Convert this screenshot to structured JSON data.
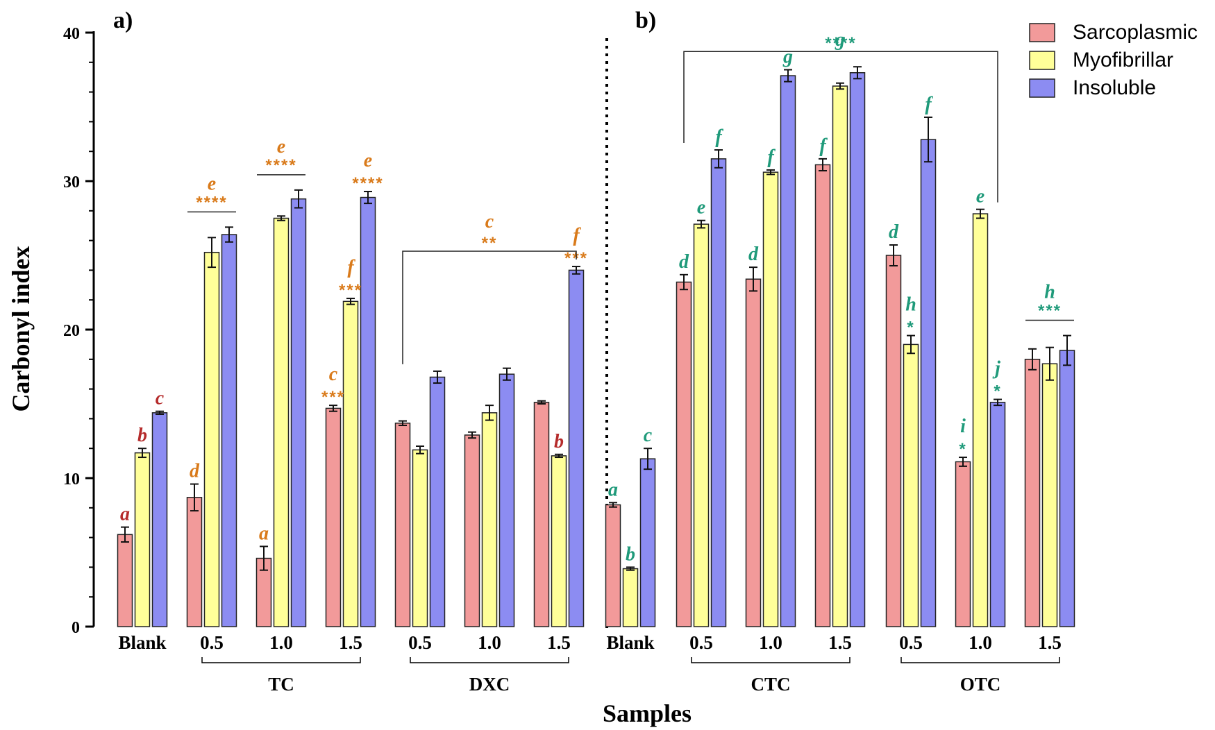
{
  "chart_data": {
    "type": "bar",
    "ylabel": "Carbonyl index",
    "xlabel": "Samples",
    "ylim": [
      0,
      40
    ],
    "yticks": [
      "0",
      "10",
      "20",
      "30",
      "40"
    ],
    "panels": [
      "a)",
      "b)"
    ],
    "categories": [
      "Blank",
      "0.5",
      "1.0",
      "1.5",
      "0.5",
      "1.0",
      "1.5",
      "Blank",
      "0.5",
      "1.0",
      "1.5",
      "0.5",
      "1.0",
      "1.5"
    ],
    "groups": [
      {
        "label": "TC",
        "from": 1,
        "to": 3
      },
      {
        "label": "DXC",
        "from": 4,
        "to": 6
      },
      {
        "label": "CTC",
        "from": 8,
        "to": 10
      },
      {
        "label": "OTC",
        "from": 11,
        "to": 13
      }
    ],
    "series": [
      {
        "name": "Sarcoplasmic",
        "color": "#f29a9a",
        "values": [
          6.2,
          8.7,
          4.6,
          14.7,
          13.7,
          12.9,
          15.1,
          8.2,
          23.2,
          23.4,
          31.1,
          25.0,
          11.1,
          18.0
        ],
        "errors": [
          0.5,
          0.9,
          0.8,
          0.2,
          0.15,
          0.2,
          0.1,
          0.15,
          0.5,
          0.8,
          0.4,
          0.7,
          0.3,
          0.7
        ]
      },
      {
        "name": "Myofibrillar",
        "color": "#ffff99",
        "values": [
          11.7,
          25.2,
          27.5,
          21.9,
          11.9,
          14.4,
          11.5,
          3.9,
          27.1,
          30.6,
          36.4,
          19.0,
          27.8,
          17.7
        ],
        "errors": [
          0.3,
          1.0,
          0.15,
          0.2,
          0.25,
          0.5,
          0.1,
          0.1,
          0.25,
          0.15,
          0.2,
          0.6,
          0.3,
          1.1
        ]
      },
      {
        "name": "Insoluble",
        "color": "#8c8cf2",
        "values": [
          14.4,
          26.4,
          28.8,
          28.9,
          16.8,
          17.0,
          24.0,
          11.3,
          31.5,
          37.1,
          37.3,
          32.8,
          15.1,
          18.6
        ],
        "errors": [
          0.1,
          0.5,
          0.6,
          0.4,
          0.4,
          0.4,
          0.25,
          0.7,
          0.6,
          0.4,
          0.4,
          1.5,
          0.2,
          1.0
        ]
      }
    ],
    "annotations": [
      {
        "text": "a",
        "cat": 0,
        "series": 0,
        "color": "#b52b2b"
      },
      {
        "text": "b",
        "cat": 0,
        "series": 1,
        "color": "#b52b2b"
      },
      {
        "text": "c",
        "cat": 0,
        "series": 2,
        "color": "#b52b2b"
      },
      {
        "text": "d",
        "cat": 1,
        "series": 0,
        "color": "#d97a1a"
      },
      {
        "text": "a",
        "cat": 2,
        "series": 0,
        "color": "#d97a1a"
      },
      {
        "text": "c",
        "cat": 3,
        "series": 0,
        "color": "#d97a1a",
        "stars": "***"
      },
      {
        "text": "f",
        "cat": 3,
        "series": 1,
        "color": "#d97a1a",
        "stars": "***"
      },
      {
        "text": "e",
        "cat": 3,
        "series": 2,
        "color": "#d97a1a",
        "stars": "****"
      },
      {
        "text": "f",
        "cat": 6,
        "series": 2,
        "color": "#d97a1a",
        "stars": "***"
      },
      {
        "text": "b",
        "cat": 6,
        "series": 1,
        "color": "#b52b2b"
      },
      {
        "text": "a",
        "cat": 7,
        "series": 0,
        "color": "#1f9a7a"
      },
      {
        "text": "b",
        "cat": 7,
        "series": 1,
        "color": "#1f9a7a"
      },
      {
        "text": "c",
        "cat": 7,
        "series": 2,
        "color": "#1f9a7a"
      },
      {
        "text": "d",
        "cat": 8,
        "series": 0,
        "color": "#1f9a7a"
      },
      {
        "text": "e",
        "cat": 8,
        "series": 1,
        "color": "#1f9a7a"
      },
      {
        "text": "f",
        "cat": 8,
        "series": 2,
        "color": "#1f9a7a"
      },
      {
        "text": "d",
        "cat": 9,
        "series": 0,
        "color": "#1f9a7a"
      },
      {
        "text": "f",
        "cat": 9,
        "series": 1,
        "color": "#1f9a7a"
      },
      {
        "text": "g",
        "cat": 9,
        "series": 2,
        "color": "#1f9a7a"
      },
      {
        "text": "f",
        "cat": 10,
        "series": 0,
        "color": "#1f9a7a"
      },
      {
        "text": "d",
        "cat": 11,
        "series": 0,
        "color": "#1f9a7a"
      },
      {
        "text": "h",
        "cat": 11,
        "series": 1,
        "color": "#1f9a7a",
        "stars": "*"
      },
      {
        "text": "f",
        "cat": 11,
        "series": 2,
        "color": "#1f9a7a"
      },
      {
        "text": "i",
        "cat": 12,
        "series": 0,
        "color": "#1f9a7a",
        "stars": "*"
      },
      {
        "text": "e",
        "cat": 12,
        "series": 1,
        "color": "#1f9a7a"
      },
      {
        "text": "j",
        "cat": 12,
        "series": 2,
        "color": "#1f9a7a",
        "stars": "*"
      }
    ],
    "brackets": [
      {
        "text": "e",
        "stars": "****",
        "cat": 1,
        "color": "#d97a1a"
      },
      {
        "text": "e",
        "stars": "****",
        "cat": 2,
        "color": "#d97a1a"
      },
      {
        "text": "c",
        "stars": "**",
        "from": 4,
        "to": 6,
        "color": "#d97a1a"
      },
      {
        "text": "g",
        "stars": "",
        "cat": 10,
        "color": "#1f9a7a"
      },
      {
        "text": "h",
        "stars": "***",
        "cat": 13,
        "color": "#1f9a7a"
      },
      {
        "text": "",
        "stars": "****",
        "from": 8,
        "to": 12,
        "color": "#1f9a7a"
      }
    ],
    "legend": "top-right",
    "grid": false
  }
}
